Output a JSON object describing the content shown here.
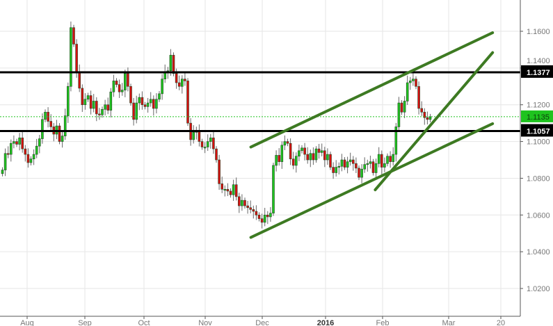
{
  "chart_data": {
    "type": "candlestick",
    "title": "",
    "ylim": [
      1.0111,
      1.176
    ],
    "grid": true,
    "colors": {
      "up": "#1ec31e",
      "down": "#d80f0f",
      "outline": "#2b4a2b",
      "wick": "#666666",
      "trendline": "#3d7a22",
      "level": "#000000",
      "current": "#1ec31e"
    },
    "y_ticks": [
      "1.1600",
      "1.1400",
      "1.1200",
      "1.1000",
      "1.0800",
      "1.0600",
      "1.0400",
      "1.0200"
    ],
    "x_ticks": [
      {
        "label": "Aug",
        "date": "2015-08-01"
      },
      {
        "label": "Sep",
        "date": "2015-09-01"
      },
      {
        "label": "Oct",
        "date": "2015-10-01"
      },
      {
        "label": "Nov",
        "date": "2015-11-01"
      },
      {
        "label": "Dec",
        "date": "2015-12-01"
      },
      {
        "label": "2016",
        "date": "2016-01-01",
        "bold": true
      },
      {
        "label": "Feb",
        "date": "2016-02-01"
      },
      {
        "label": "Mar",
        "date": "2016-03-01"
      },
      {
        "label": "20",
        "date": "2016-03-20"
      }
    ],
    "closes": [
      1.0845,
      1.0935,
      1.093,
      1.099,
      1.1,
      1.0985,
      1.102,
      1.096,
      1.093,
      1.0885,
      1.0905,
      1.093,
      1.0975,
      1.1015,
      1.112,
      1.116,
      1.111,
      1.108,
      1.104,
      1.1085,
      1.1,
      1.103,
      1.114,
      1.13,
      1.162,
      1.153,
      1.138,
      1.129,
      1.12,
      1.123,
      1.125,
      1.118,
      1.122,
      1.115,
      1.1145,
      1.1175,
      1.12,
      1.117,
      1.127,
      1.133,
      1.131,
      1.127,
      1.128,
      1.137,
      1.13,
      1.121,
      1.112,
      1.121,
      1.124,
      1.12,
      1.119,
      1.121,
      1.123,
      1.118,
      1.123,
      1.126,
      1.134,
      1.138,
      1.1385,
      1.147,
      1.137,
      1.132,
      1.13,
      1.134,
      1.133,
      1.11,
      1.101,
      1.105,
      1.106,
      1.1,
      1.097,
      1.097,
      1.1,
      1.102,
      1.096,
      1.09,
      1.077,
      1.074,
      1.074,
      1.073,
      1.071,
      1.0765,
      1.07,
      1.065,
      1.068,
      1.065,
      1.064,
      1.063,
      1.062,
      1.06,
      1.058,
      1.056,
      1.06,
      1.059,
      1.061,
      1.087,
      1.0925,
      1.089,
      1.098,
      1.1,
      1.099,
      1.0905,
      1.087,
      1.092,
      1.095,
      1.0965,
      1.093,
      1.09,
      1.0935,
      1.09,
      1.096,
      1.094,
      1.095,
      1.09,
      1.093,
      1.086,
      1.083,
      1.086,
      1.0865,
      1.09,
      1.086,
      1.089,
      1.09,
      1.088,
      1.0855,
      1.0805,
      1.085,
      1.0875,
      1.088,
      1.089,
      1.083,
      1.088,
      1.093,
      1.086,
      1.088,
      1.092,
      1.089,
      1.093,
      1.108,
      1.121,
      1.116,
      1.122,
      1.132,
      1.133,
      1.134,
      1.13,
      1.118,
      1.116,
      1.113,
      1.112,
      1.1135
    ],
    "levels": [
      {
        "label": "1.1377",
        "value": 1.1377
      },
      {
        "label": "1.1057",
        "value": 1.1057
      }
    ],
    "current_price": {
      "label": "1.1135",
      "value": 1.1135
    },
    "trendlines": [
      {
        "from": {
          "date": "2015-11-25",
          "price": 1.097
        },
        "to": {
          "date": "2016-03-17",
          "price": 1.1592
        }
      },
      {
        "from": {
          "date": "2015-11-25",
          "price": 1.0478
        },
        "to": {
          "date": "2016-03-17",
          "price": 1.1097
        }
      },
      {
        "from": {
          "date": "2016-01-28",
          "price": 1.0737
        },
        "to": {
          "date": "2016-03-17",
          "price": 1.1484
        }
      }
    ]
  }
}
